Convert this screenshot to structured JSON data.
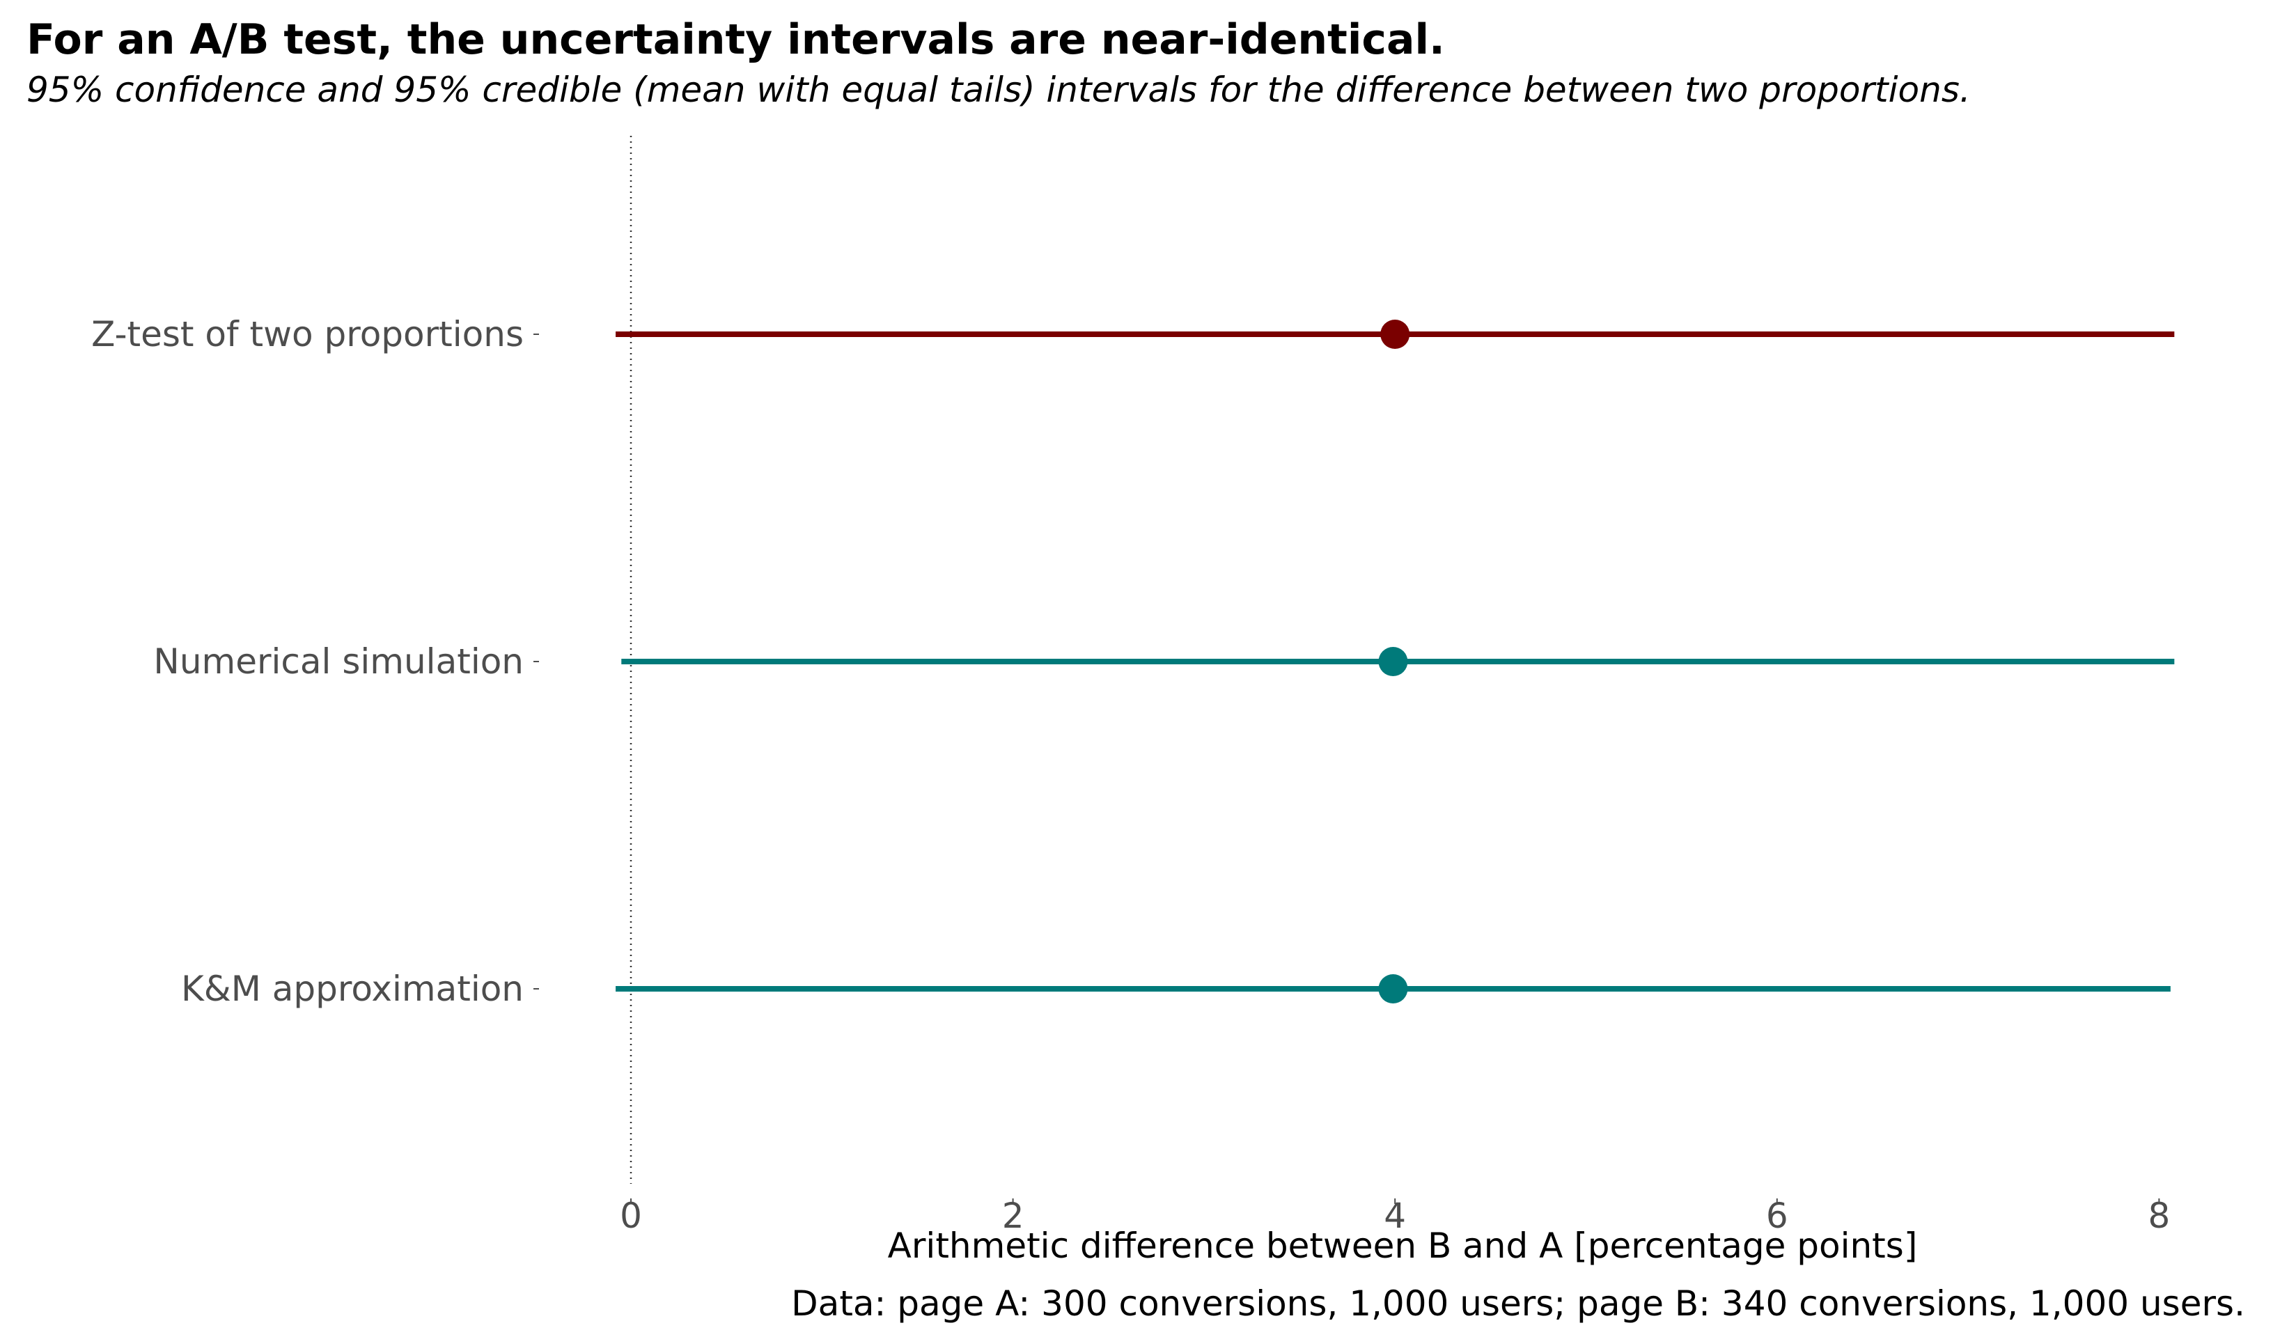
{
  "chart_data": {
    "type": "interval",
    "title": "For an A/B test, the uncertainty intervals are near-identical.",
    "subtitle": "95% confidence and 95% credible (mean with equal tails) intervals for the difference between two proportions.",
    "xlabel": "Arithmetic difference between B and A [percentage points]",
    "caption": "Data: page A: 300 conversions, 1,000 users; page B: 340 conversions, 1,000 users.",
    "xlim": [
      -0.1,
      8.1
    ],
    "xticks": [
      0,
      2,
      4,
      6,
      8
    ],
    "reference_line": 0,
    "rows": [
      {
        "label": "Z-test of two proportions",
        "estimate": 4.0,
        "lower": -0.08,
        "upper": 8.08,
        "color": "#7a0000"
      },
      {
        "label": "Numerical simulation",
        "estimate": 3.99,
        "lower": -0.05,
        "upper": 8.08,
        "color": "#007a7a"
      },
      {
        "label": "K&M approximation",
        "estimate": 3.99,
        "lower": -0.08,
        "upper": 8.06,
        "color": "#007a7a"
      }
    ]
  }
}
